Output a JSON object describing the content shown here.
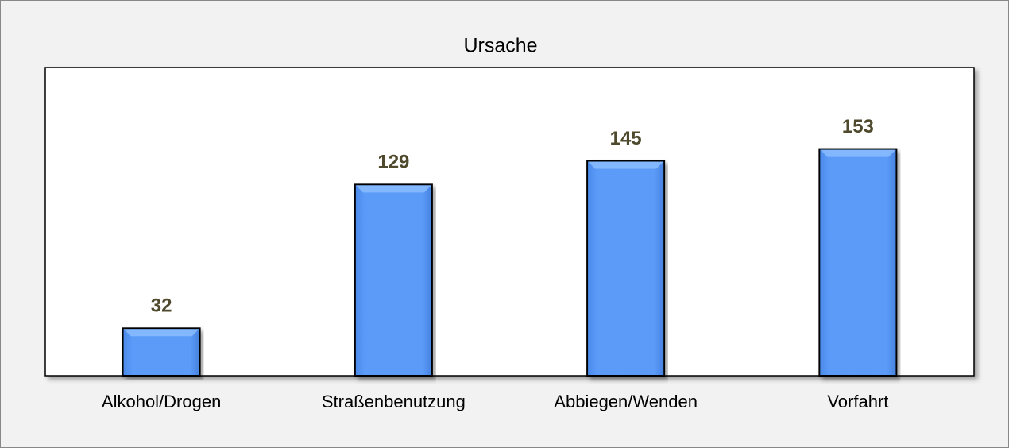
{
  "chart_data": {
    "type": "bar",
    "title": "Ursache",
    "categories": [
      "Alkohol/Drogen",
      "Straßenbenutzung",
      "Abbiegen/Wenden",
      "Vorfahrt"
    ],
    "values": [
      32,
      129,
      145,
      153
    ],
    "color": "#5b9bf8",
    "ylim": [
      0,
      208
    ]
  }
}
